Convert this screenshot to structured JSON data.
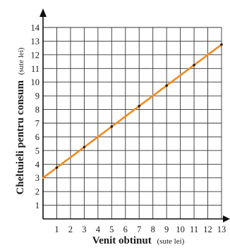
{
  "chart_data": {
    "type": "line",
    "xlabel": "Venit obtinut",
    "xlabel_unit": "(sute lei)",
    "ylabel": "Cheltuieli pentru consum",
    "ylabel_unit": "(sute lei)",
    "xlim": [
      0,
      13
    ],
    "ylim": [
      0,
      14
    ],
    "x_ticks": [
      "1",
      "2",
      "3",
      "4",
      "5",
      "6",
      "7",
      "8",
      "9",
      "10",
      "11",
      "12",
      "13"
    ],
    "y_ticks": [
      "1",
      "2",
      "3",
      "4",
      "5",
      "6",
      "7",
      "8",
      "9",
      "10",
      "11",
      "12",
      "13",
      "14"
    ],
    "grid": true,
    "series": [
      {
        "x": [
          0,
          1,
          2,
          3,
          4,
          5,
          6,
          7,
          8,
          9,
          10,
          11,
          12,
          13
        ],
        "y": [
          3,
          3.75,
          4.5,
          5.25,
          6,
          6.75,
          7.5,
          8.25,
          9,
          9.75,
          10.5,
          11.25,
          12,
          12.75
        ],
        "color": "#f28a1e"
      }
    ],
    "markers_at_x": [
      1,
      3,
      5,
      7,
      9,
      11,
      13
    ]
  }
}
